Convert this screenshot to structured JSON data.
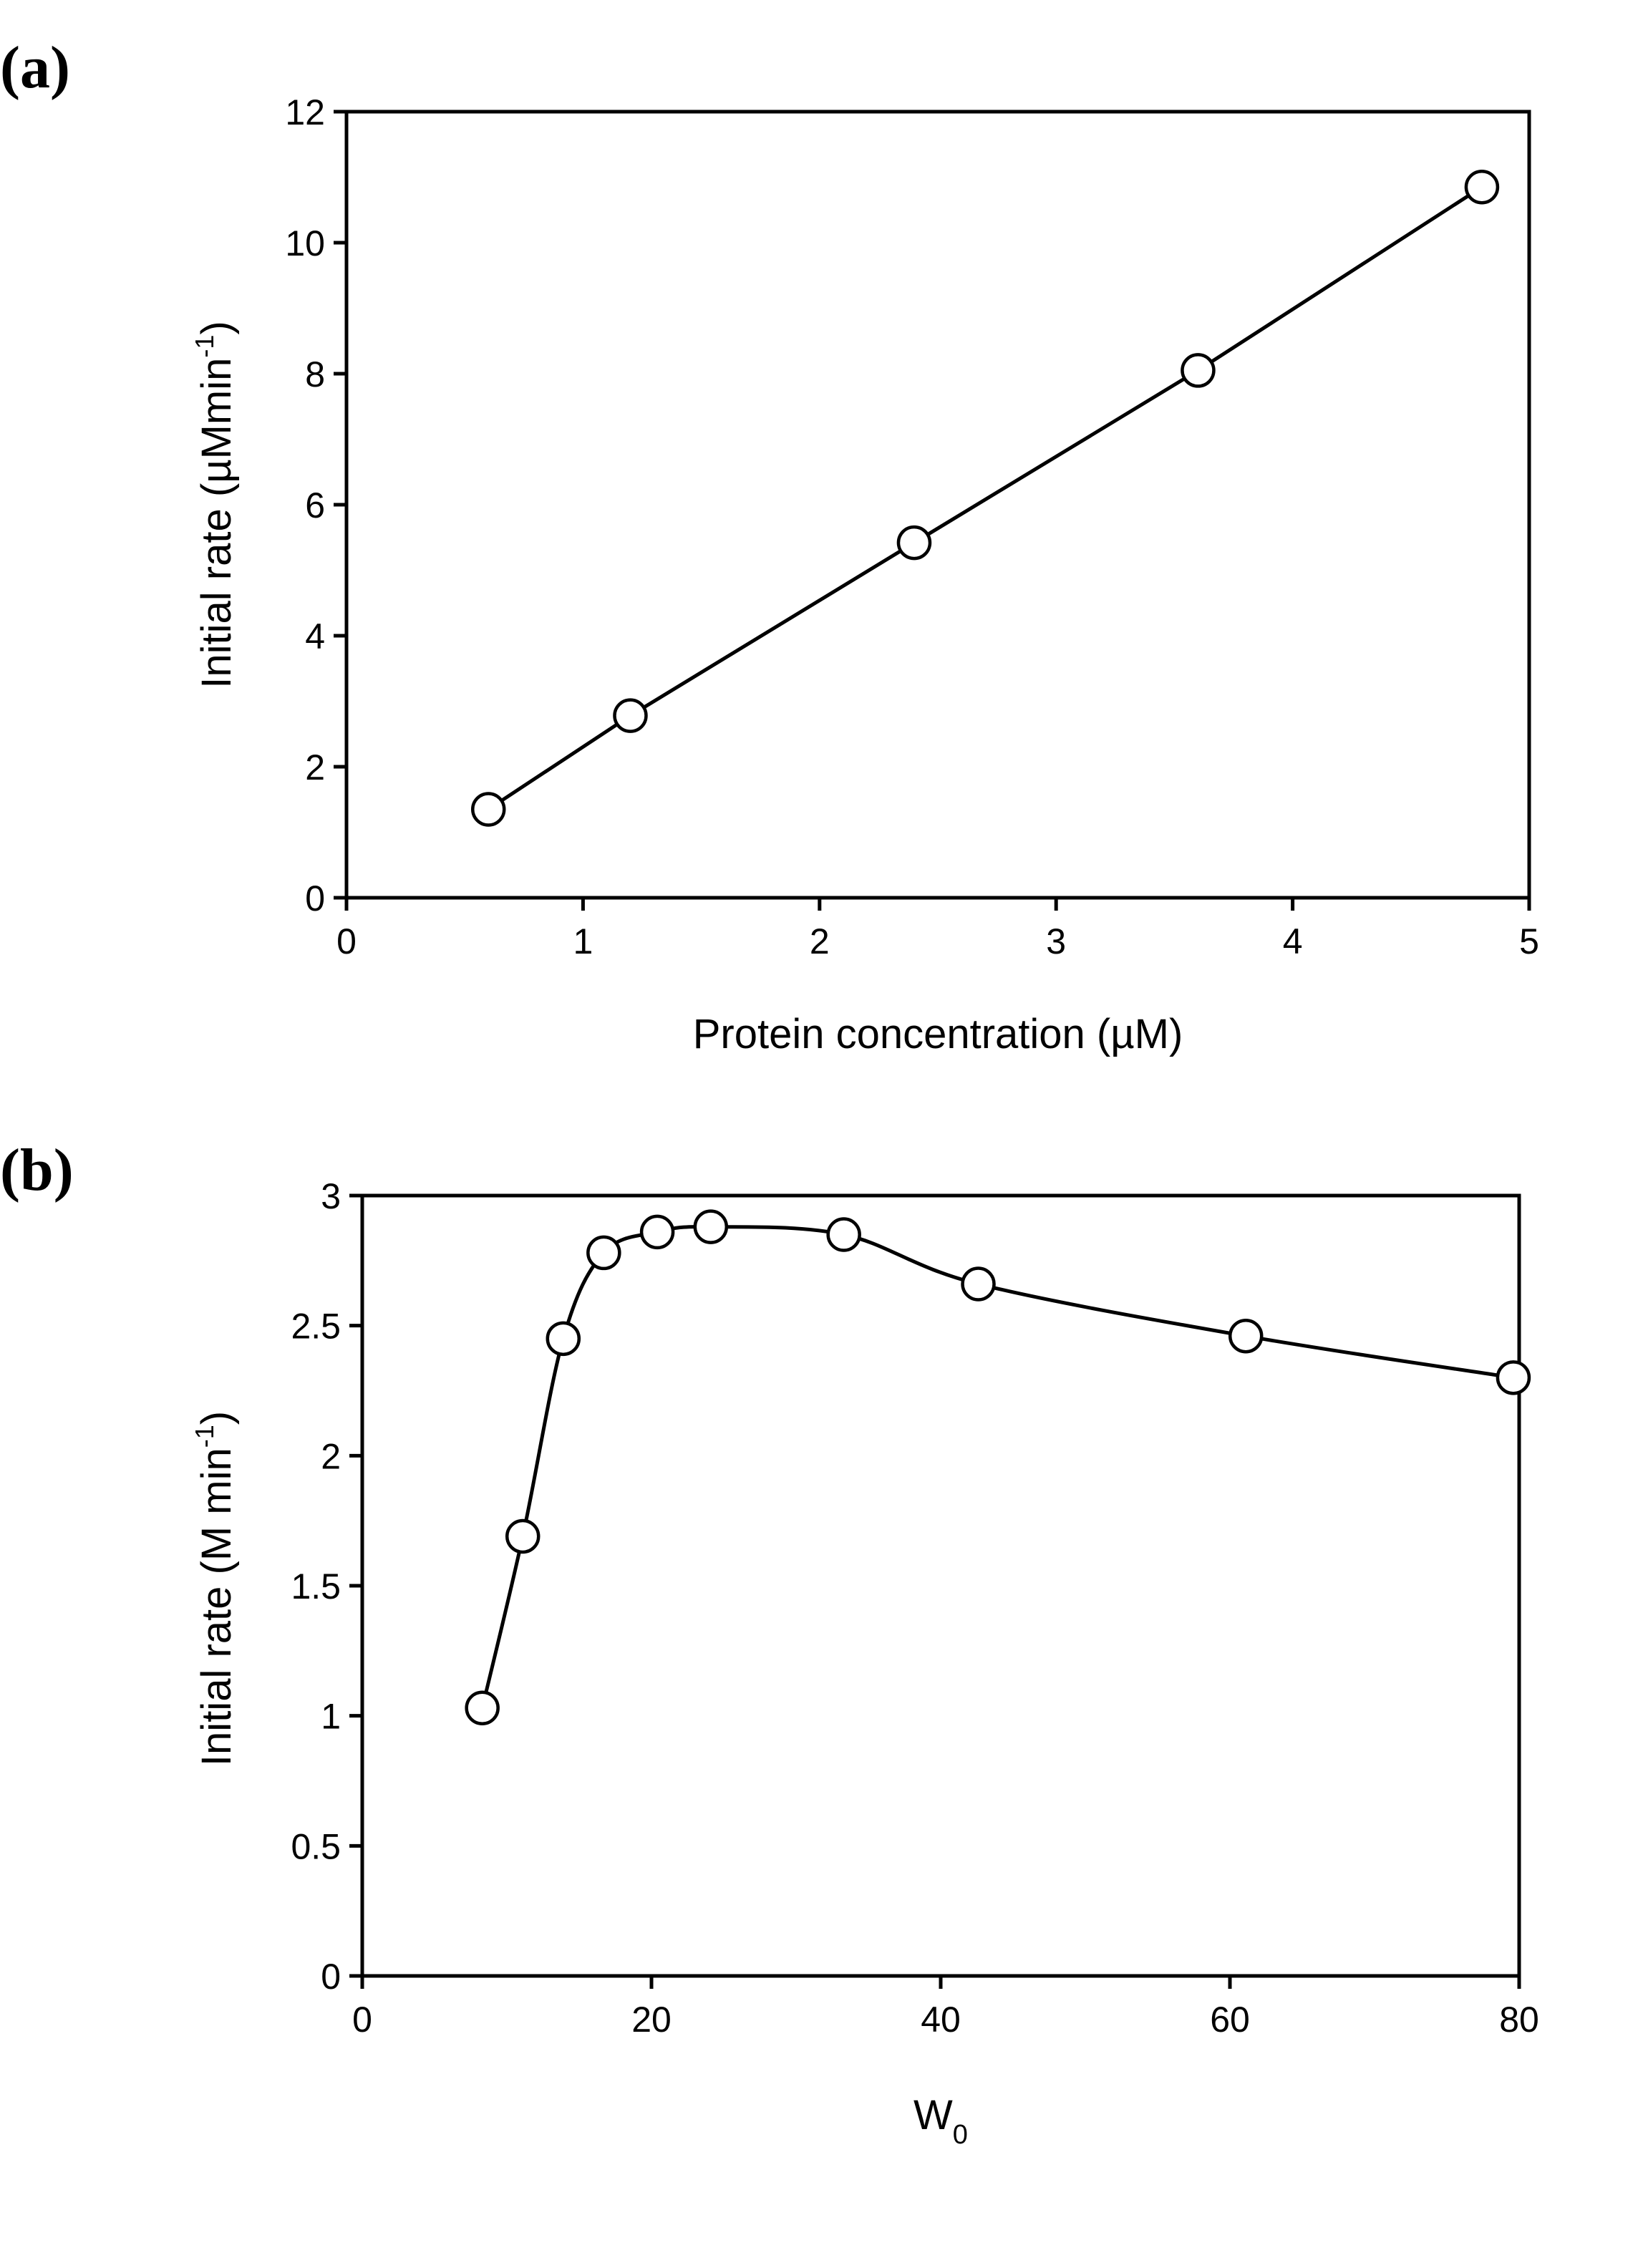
{
  "chart_data": [
    {
      "panel": "(a)",
      "type": "line",
      "xlabel": "Protein concentration (µM)",
      "ylabel_main": "Initial rate (µMmin",
      "ylabel_sup": "-1",
      "ylabel_close": ")",
      "xlim": [
        0,
        5
      ],
      "ylim": [
        0,
        12
      ],
      "xticks": [
        0,
        1,
        2,
        3,
        4,
        5
      ],
      "yticks": [
        0,
        2,
        4,
        6,
        8,
        10,
        12
      ],
      "xtick_labels": [
        "0",
        "1",
        "2",
        "3",
        "4",
        "5"
      ],
      "ytick_labels": [
        "0",
        "2",
        "4",
        "6",
        "8",
        "10",
        "12"
      ],
      "smooth": false,
      "series": [
        {
          "name": "initial rate",
          "x": [
            0.6,
            1.2,
            2.4,
            3.6,
            4.8
          ],
          "y": [
            1.35,
            2.78,
            5.42,
            8.05,
            10.85
          ]
        }
      ]
    },
    {
      "panel": "(b)",
      "type": "line",
      "xlabel_main": "W",
      "xlabel_sub": "0",
      "ylabel_main": "Initial rate (M min",
      "ylabel_sup": "-1",
      "ylabel_close": ")",
      "xlim": [
        0,
        80
      ],
      "ylim": [
        0,
        3
      ],
      "xticks": [
        0,
        20,
        40,
        60,
        80
      ],
      "yticks": [
        0,
        0.5,
        1,
        1.5,
        2,
        2.5,
        3
      ],
      "xtick_labels": [
        "0",
        "20",
        "40",
        "60",
        "80"
      ],
      "ytick_labels": [
        "0",
        "0.5",
        "1",
        "1.5",
        "2",
        "2.5",
        "3"
      ],
      "smooth": true,
      "series": [
        {
          "name": "initial rate",
          "x": [
            8.3,
            11.1,
            13.9,
            16.7,
            20.4,
            24.1,
            33.3,
            42.6,
            61.1,
            79.6
          ],
          "y": [
            1.03,
            1.69,
            2.45,
            2.78,
            2.86,
            2.88,
            2.85,
            2.66,
            2.46,
            2.3
          ]
        }
      ]
    }
  ]
}
